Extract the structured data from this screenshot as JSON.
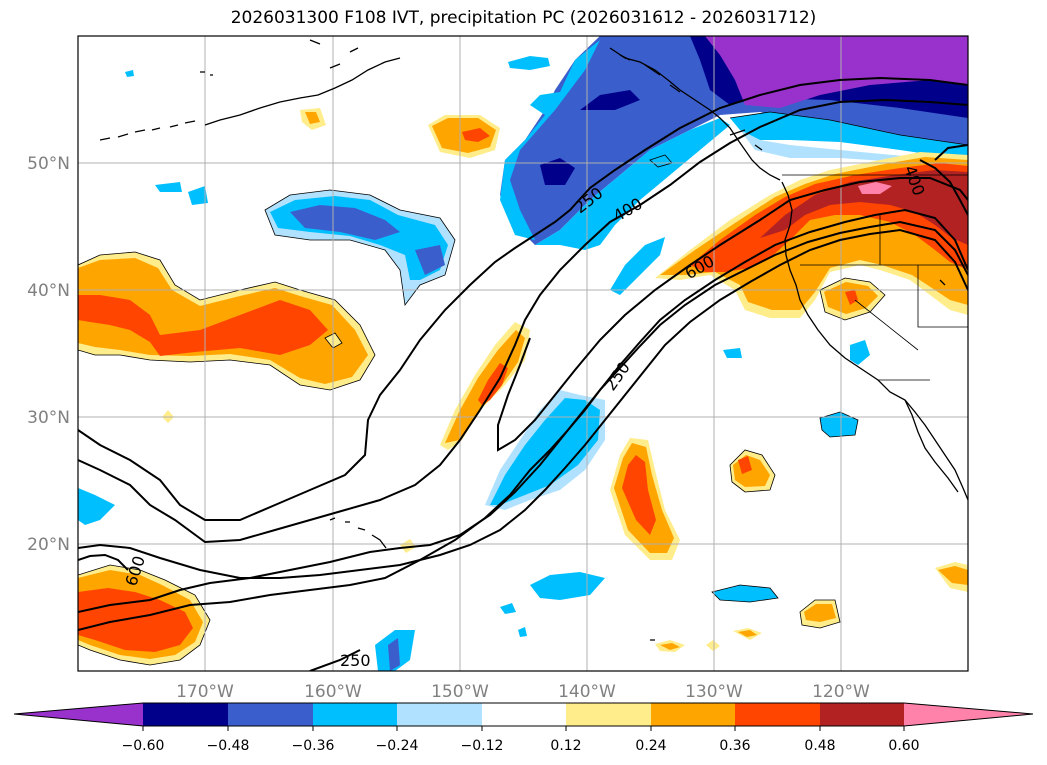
{
  "title": "2026031300 F108 IVT, precipitation PC (2026031612 - 2026031712)",
  "map": {
    "lat_ticks": [
      "50°N",
      "40°N",
      "30°N",
      "20°N"
    ],
    "lon_ticks": [
      "170°W",
      "160°W",
      "150°W",
      "140°W",
      "130°W",
      "120°W"
    ]
  },
  "contour_labels": [
    "250",
    "400",
    "600",
    "250",
    "600",
    "400",
    "250"
  ],
  "colorbar": {
    "ticks": [
      "−0.60",
      "−0.48",
      "−0.36",
      "−0.24",
      "−0.12",
      "0.12",
      "0.24",
      "0.36",
      "0.48",
      "0.60"
    ],
    "colors": {
      "under": "#9932cc",
      "c1": "#00008b",
      "c2": "#3a5fcd",
      "c3": "#00bfff",
      "c4": "#b0e2ff",
      "c5": "#ffffff",
      "c6": "#ffec8b",
      "c7": "#ffa500",
      "c8": "#ff4500",
      "c9": "#b22222",
      "over": "#ff82ab"
    }
  }
}
